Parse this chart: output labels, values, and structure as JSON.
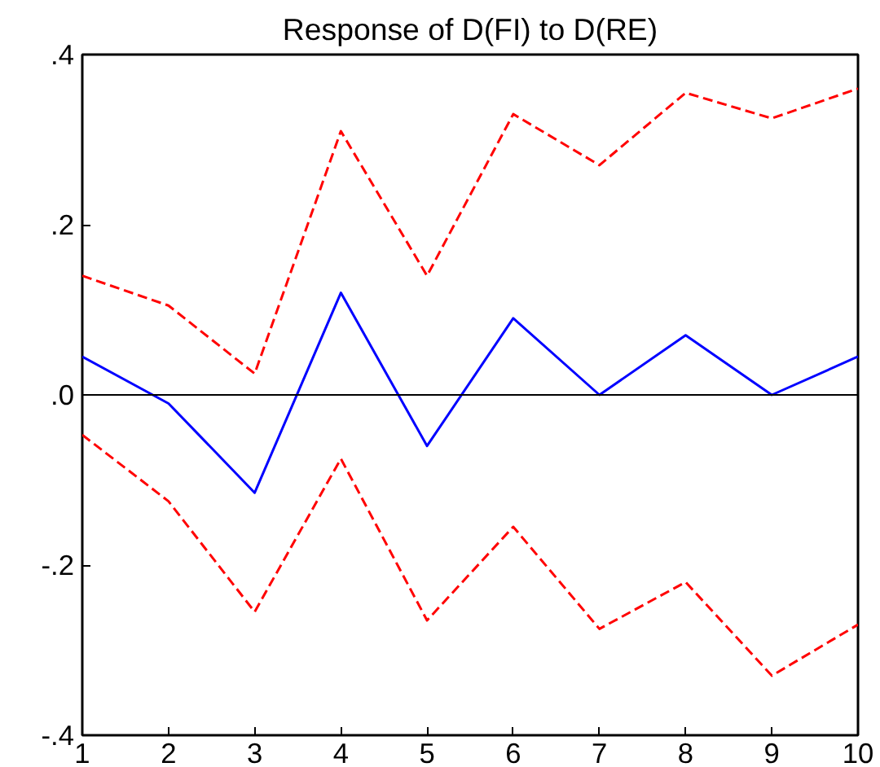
{
  "chart_data": {
    "type": "line",
    "title": "Response of D(FI) to D(RE)",
    "x": [
      1,
      2,
      3,
      4,
      5,
      6,
      7,
      8,
      9,
      10
    ],
    "series": [
      {
        "color": "#0000ff",
        "line_style": "solid",
        "values": [
          0.045,
          -0.01,
          -0.115,
          0.12,
          -0.06,
          0.09,
          0,
          0.07,
          0,
          0.045
        ]
      },
      {
        "color": "#ff0000",
        "line_style": "dashed",
        "values": [
          0.14,
          0.105,
          0.025,
          0.31,
          0.14,
          0.33,
          0.27,
          0.355,
          0.325,
          0.36
        ]
      },
      {
        "color": "#ff0000",
        "line_style": "dashed",
        "values": [
          -0.047,
          -0.125,
          -0.255,
          -0.075,
          -0.265,
          -0.155,
          -0.275,
          -0.22,
          -0.33,
          -0.27
        ]
      }
    ],
    "xlim": [
      1,
      10
    ],
    "xticks": [
      1,
      2,
      3,
      4,
      5,
      6,
      7,
      8,
      9,
      10
    ],
    "ylim": [
      -0.4,
      0.4
    ],
    "yticks": [
      {
        "value": -0.4,
        "label": "-.4"
      },
      {
        "value": -0.2,
        "label": "-.2"
      },
      {
        "value": 0,
        "label": ".0"
      },
      {
        "value": 0.2,
        "label": ".2"
      },
      {
        "value": 0.4,
        "label": ".4"
      }
    ],
    "ref_lines": [
      {
        "axis": "y",
        "value": 0,
        "color": "#000000"
      }
    ],
    "grid": false,
    "marker": "none"
  }
}
